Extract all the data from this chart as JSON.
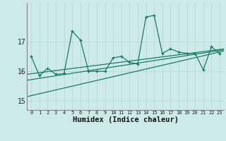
{
  "xlabel": "Humidex (Indice chaleur)",
  "bg_color": "#cceae8",
  "grid_color": "#c8dede",
  "line_color": "#1a7a6a",
  "x": [
    0,
    1,
    2,
    3,
    4,
    5,
    6,
    7,
    8,
    9,
    10,
    11,
    12,
    13,
    14,
    15,
    16,
    17,
    18,
    19,
    20,
    21,
    22,
    23
  ],
  "y_main": [
    16.5,
    15.85,
    16.1,
    15.9,
    15.92,
    17.35,
    17.05,
    16.0,
    16.0,
    16.0,
    16.45,
    16.5,
    16.3,
    16.25,
    17.82,
    17.88,
    16.6,
    16.75,
    16.65,
    16.6,
    16.6,
    16.05,
    16.82,
    16.6
  ],
  "ylim": [
    14.7,
    18.3
  ],
  "yticks": [
    15,
    16,
    17
  ],
  "xticks": [
    0,
    1,
    2,
    3,
    4,
    5,
    6,
    7,
    8,
    9,
    10,
    11,
    12,
    13,
    14,
    15,
    16,
    17,
    18,
    19,
    20,
    21,
    22,
    23
  ],
  "trend1": [
    15.15,
    16.68
  ],
  "trend2": [
    15.7,
    16.72
  ],
  "trend3": [
    15.9,
    16.75
  ]
}
